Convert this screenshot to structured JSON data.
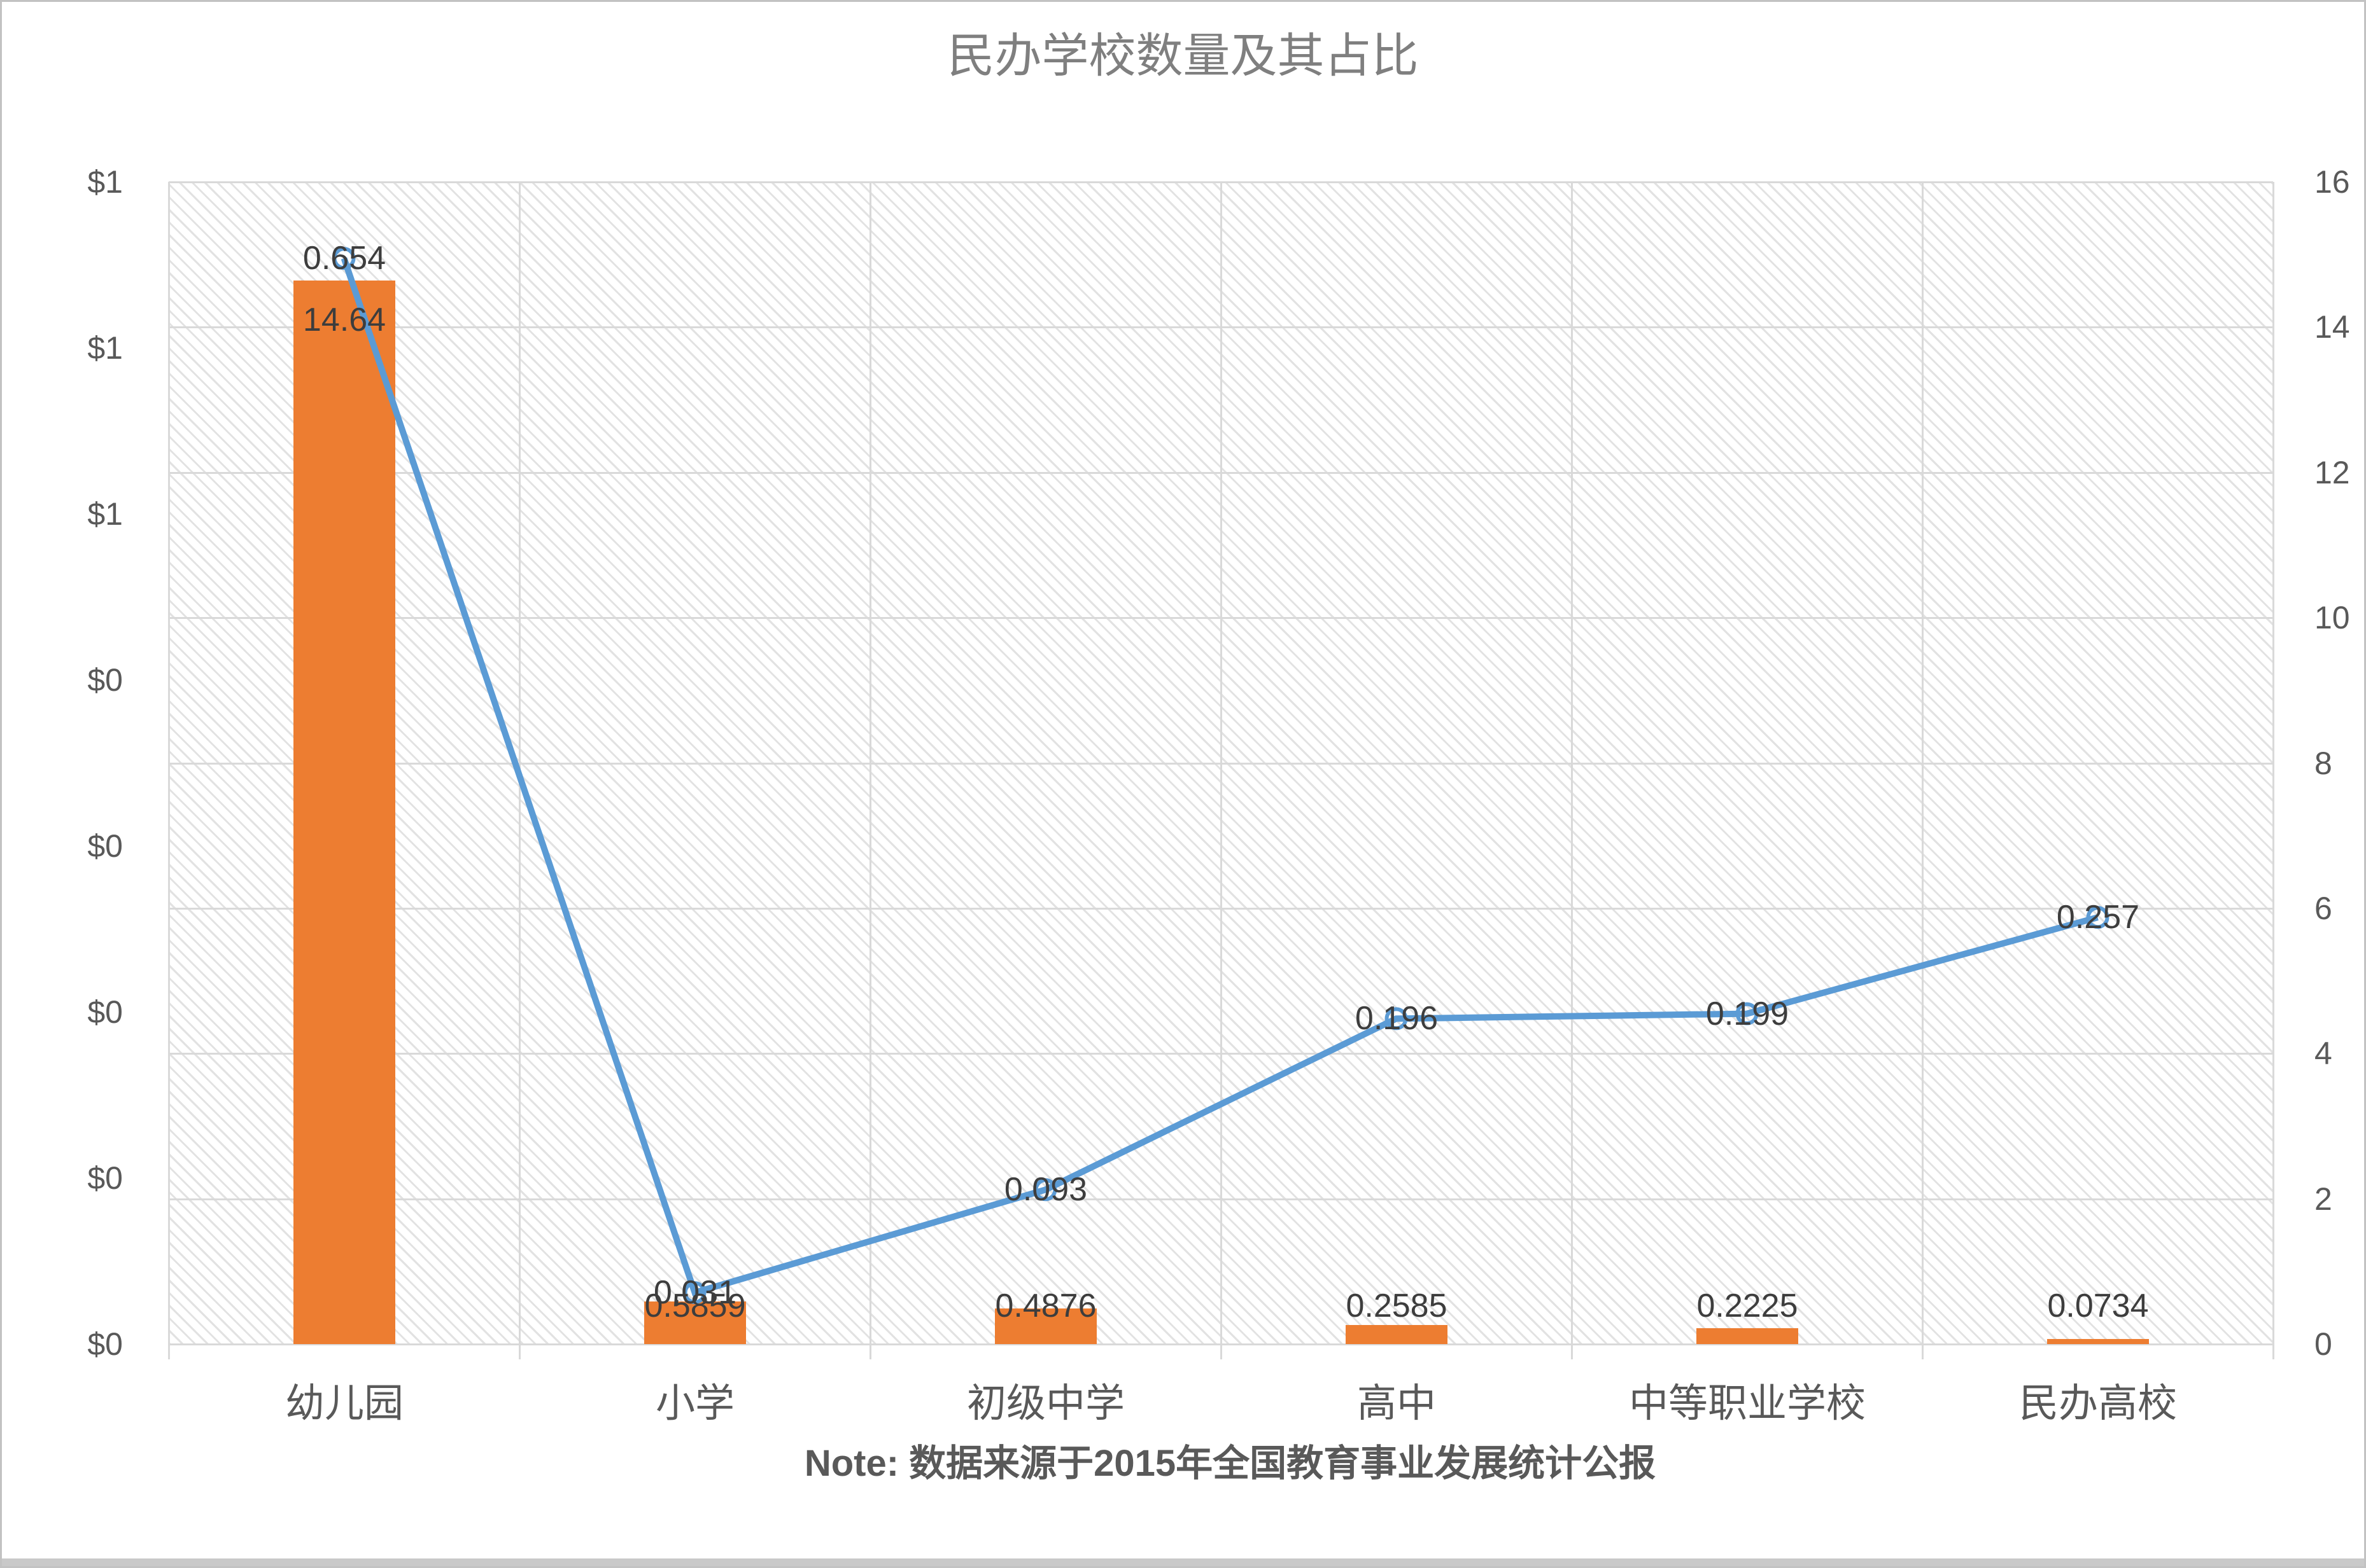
{
  "chart": {
    "title": "民办学校数量及其占比",
    "note": "Note: 数据来源于2015年全国教育事业发展统计公报"
  },
  "chart_data": {
    "type": "combo",
    "title": "民办学校数量及其占比",
    "note": "Note: 数据来源于2015年全国教育事业发展统计公报",
    "categories": [
      "幼儿园",
      "小学",
      "初级中学",
      "高中",
      "中等职业学校",
      "民办高校"
    ],
    "series": [
      {
        "type": "bar",
        "axis": "right",
        "color": "#ED7D31",
        "values": [
          14.64,
          0.5859,
          0.4876,
          0.2585,
          0.2225,
          0.0734
        ],
        "data_labels": [
          "14.64",
          "0.5859",
          "0.4876",
          "0.2585",
          "0.2225",
          "0.0734"
        ]
      },
      {
        "type": "line",
        "axis": "left",
        "color": "#5B9BD5",
        "marker": "open-circle",
        "values": [
          0.654,
          0.031,
          0.093,
          0.196,
          0.199,
          0.257
        ],
        "data_labels": [
          "0.654",
          "0.031",
          "0.093",
          "0.196",
          "0.199",
          "0.257"
        ]
      }
    ],
    "left_axis": {
      "tick_labels": [
        "$1",
        "$1",
        "$1",
        "$0",
        "$0",
        "$0",
        "$0",
        "$0"
      ],
      "min": 0,
      "max": 0.7
    },
    "right_axis": {
      "tick_labels": [
        "16",
        "14",
        "12",
        "10",
        "8",
        "6",
        "4",
        "2",
        "0"
      ],
      "min": 0,
      "max": 16
    },
    "legend": "none",
    "grid": "on",
    "plot_background": "diagonal-hatch",
    "gridline_color": "#D9D9D9"
  }
}
